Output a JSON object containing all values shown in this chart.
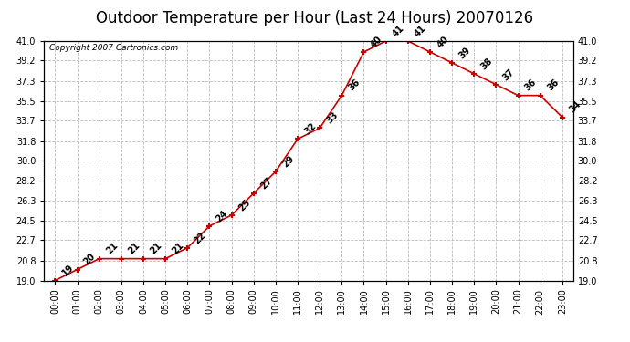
{
  "title": "Outdoor Temperature per Hour (Last 24 Hours) 20070126",
  "copyright": "Copyright 2007 Cartronics.com",
  "hours": [
    "00:00",
    "01:00",
    "02:00",
    "03:00",
    "04:00",
    "05:00",
    "06:00",
    "07:00",
    "08:00",
    "09:00",
    "10:00",
    "11:00",
    "12:00",
    "13:00",
    "14:00",
    "15:00",
    "16:00",
    "17:00",
    "18:00",
    "19:00",
    "20:00",
    "21:00",
    "22:00",
    "23:00"
  ],
  "temps": [
    19,
    20,
    21,
    21,
    21,
    21,
    22,
    24,
    25,
    27,
    29,
    32,
    33,
    36,
    40,
    41,
    41,
    40,
    39,
    38,
    37,
    36,
    36,
    34
  ],
  "ylim_min": 19.0,
  "ylim_max": 41.0,
  "yticks": [
    19.0,
    20.8,
    22.7,
    24.5,
    26.3,
    28.2,
    30.0,
    31.8,
    33.7,
    35.5,
    37.3,
    39.2,
    41.0
  ],
  "ytick_labels": [
    "19.0",
    "20.8",
    "22.7",
    "24.5",
    "26.3",
    "28.2",
    "30.0",
    "31.8",
    "33.7",
    "35.5",
    "37.3",
    "39.2",
    "41.0"
  ],
  "line_color": "#cc0000",
  "bg_color": "#ffffff",
  "grid_color": "#bbbbbb",
  "title_fontsize": 12,
  "label_fontsize": 7,
  "tick_fontsize": 7,
  "copyright_fontsize": 6.5
}
